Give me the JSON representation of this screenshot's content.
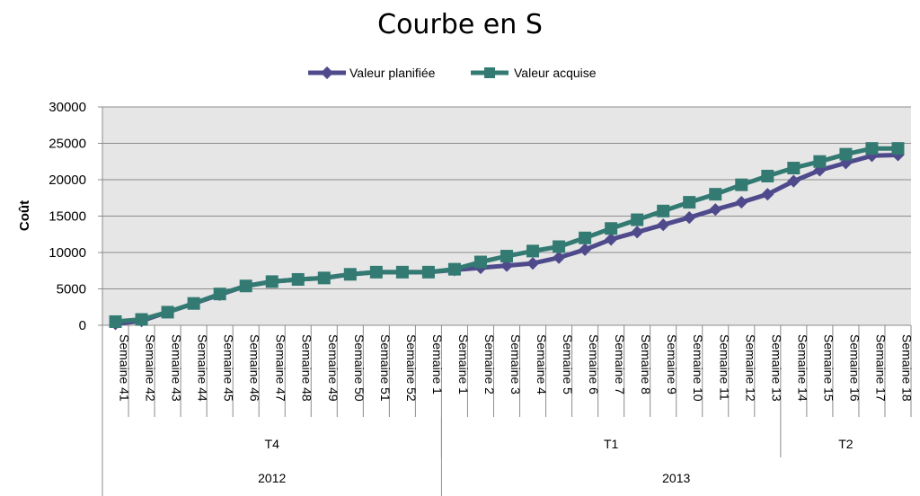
{
  "chart_data": {
    "type": "line",
    "title": "Courbe en S",
    "xlabel": "",
    "ylabel": "Coût",
    "ylim": [
      0,
      30000
    ],
    "yticks": [
      "0",
      "5000",
      "10000",
      "15000",
      "20000",
      "25000",
      "30000"
    ],
    "grid": true,
    "legend_position": "top",
    "plot_background": "#e6e6e6",
    "categories": [
      "Semaine 41",
      "Semaine 42",
      "Semaine 43",
      "Semaine 44",
      "Semaine 45",
      "Semaine 46",
      "Semaine 47",
      "Semaine 48",
      "Semaine 49",
      "Semaine 50",
      "Semaine 51",
      "Semaine 52",
      "Semaine 1",
      "Semaine 1",
      "Semaine 2",
      "Semaine 3",
      "Semaine 4",
      "Semaine 5",
      "Semaine 6",
      "Semaine 7",
      "Semaine 8",
      "Semaine 9",
      "Semaine 10",
      "Semaine 11",
      "Semaine 12",
      "Semaine 13",
      "Semaine 14",
      "Semaine 15",
      "Semaine 16",
      "Semaine 17",
      "Semaine 18"
    ],
    "quarter_groups": [
      {
        "label": "T4",
        "count": 13
      },
      {
        "label": "T1",
        "count": 13
      },
      {
        "label": "T2",
        "count": 5
      }
    ],
    "year_groups": [
      {
        "label": "2012",
        "count": 13
      },
      {
        "label": "2013",
        "count": 18
      }
    ],
    "series": [
      {
        "name": "Valeur planifiée",
        "color": "#4f4a8c",
        "marker": "diamond",
        "values": [
          200,
          600,
          1800,
          3000,
          4200,
          5400,
          6000,
          6300,
          6500,
          7000,
          7300,
          7300,
          7300,
          7600,
          7900,
          8200,
          8500,
          9300,
          10400,
          11800,
          12800,
          13800,
          14800,
          15900,
          16900,
          18000,
          19800,
          21300,
          22300,
          23300,
          23400
        ]
      },
      {
        "name": "Valeur acquise",
        "color": "#337a73",
        "marker": "square",
        "values": [
          500,
          800,
          1800,
          3000,
          4300,
          5400,
          6000,
          6300,
          6500,
          7000,
          7300,
          7300,
          7300,
          7700,
          8700,
          9500,
          10200,
          10800,
          12000,
          13300,
          14500,
          15700,
          16900,
          18000,
          19300,
          20500,
          21600,
          22500,
          23500,
          24300,
          24300
        ]
      }
    ]
  }
}
